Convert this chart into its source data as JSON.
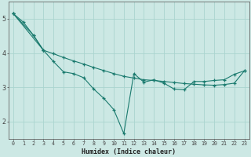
{
  "xlabel": "Humidex (Indice chaleur)",
  "ylabel": "",
  "background_color": "#cce8e4",
  "grid_color": "#aad4cf",
  "line_color": "#1a7a6e",
  "x": [
    0,
    1,
    2,
    3,
    4,
    5,
    6,
    7,
    8,
    9,
    10,
    11,
    12,
    13,
    14,
    15,
    16,
    17,
    18,
    19,
    20,
    21,
    22,
    23
  ],
  "line_upper": [
    5.15,
    4.9,
    4.52,
    4.08,
    3.98,
    3.87,
    3.77,
    3.68,
    3.58,
    3.49,
    3.4,
    3.32,
    3.27,
    3.22,
    3.2,
    3.17,
    3.14,
    3.11,
    3.09,
    3.07,
    3.06,
    3.08,
    3.12,
    3.48
  ],
  "line_mid": [
    5.15,
    null,
    4.52,
    4.08,
    null,
    null,
    null,
    null,
    null,
    null,
    null,
    null,
    null,
    null,
    null,
    null,
    null,
    null,
    null,
    null,
    null,
    null,
    null,
    null
  ],
  "line_low": [
    5.15,
    null,
    null,
    4.08,
    3.75,
    3.45,
    3.4,
    3.28,
    2.95,
    2.68,
    2.35,
    1.65,
    3.4,
    3.15,
    3.22,
    3.12,
    2.95,
    2.93,
    3.17,
    3.17,
    3.2,
    3.22,
    3.38,
    3.48
  ],
  "ylim": [
    1.5,
    5.5
  ],
  "xlim": [
    -0.5,
    23.5
  ]
}
